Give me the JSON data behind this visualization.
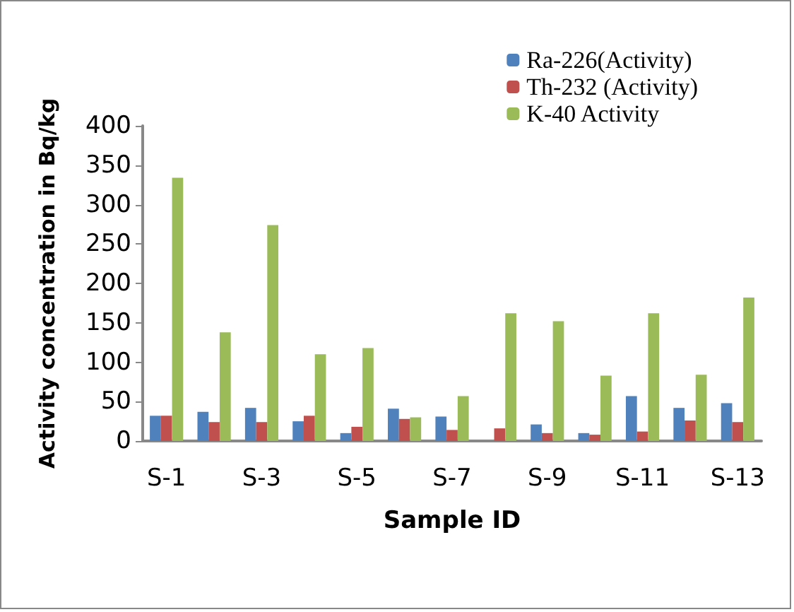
{
  "chart_data": {
    "type": "bar",
    "xlabel": "Sample ID",
    "ylabel": "Activity concentration in Bq/kg",
    "categories": [
      "S-1",
      null,
      "S-3",
      null,
      "S-5",
      null,
      "S-7",
      null,
      "S-9",
      null,
      "S-11",
      null,
      "S-13"
    ],
    "series": [
      {
        "name": "Ra-226(Activity)",
        "color": "#4f81bd",
        "values": [
          32,
          37,
          42,
          25,
          10,
          41,
          31,
          null,
          21,
          10,
          57,
          42,
          48
        ]
      },
      {
        "name": "Th-232 (Activity)",
        "color": "#c0504d",
        "values": [
          32,
          24,
          24,
          32,
          18,
          28,
          14,
          16,
          10,
          8,
          12,
          26,
          24
        ]
      },
      {
        "name": "K-40 Activity",
        "color": "#9bbb59",
        "values": [
          334,
          138,
          274,
          110,
          118,
          30,
          57,
          162,
          152,
          83,
          162,
          84,
          182
        ]
      }
    ],
    "ylim": [
      0,
      400
    ],
    "yticks": [
      0,
      50,
      100,
      150,
      200,
      250,
      300,
      350,
      400
    ],
    "grid": false,
    "legend": "top right"
  }
}
